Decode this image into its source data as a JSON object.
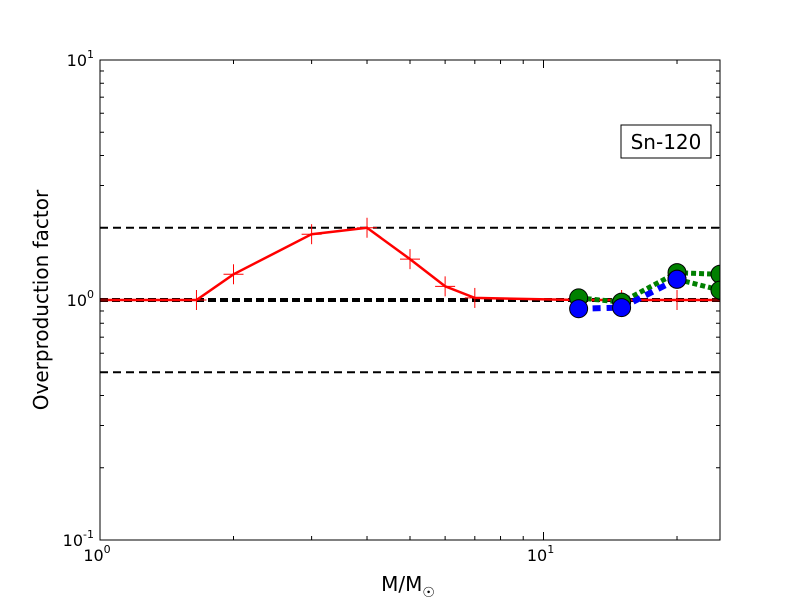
{
  "chart_data": {
    "type": "line",
    "xlabel": "M/M",
    "xlabel_subscript": "☉",
    "ylabel": "Overproduction factor",
    "xscale": "log",
    "yscale": "log",
    "xlim": [
      1,
      25
    ],
    "ylim": [
      0.1,
      10
    ],
    "x_ticks": [
      {
        "value": 1,
        "base": "10",
        "exp": "0"
      },
      {
        "value": 10,
        "base": "10",
        "exp": "1"
      }
    ],
    "y_ticks": [
      {
        "value": 0.1,
        "base": "10",
        "exp": "-1"
      },
      {
        "value": 1,
        "base": "10",
        "exp": "0"
      },
      {
        "value": 10,
        "base": "10",
        "exp": "1"
      }
    ],
    "reference_lines": [
      {
        "y": 2.0,
        "color": "#000000",
        "style": "dashed",
        "weight": "thin"
      },
      {
        "y": 1.0,
        "color": "#000000",
        "style": "dashed",
        "weight": "thick"
      },
      {
        "y": 0.5,
        "color": "#000000",
        "style": "dashed",
        "weight": "thin"
      }
    ],
    "annotation": "Sn-120",
    "legend": "none",
    "grid": false,
    "series": [
      {
        "color": "#ff0000",
        "line_style": "solid",
        "marker": "plus",
        "x": [
          1.0,
          1.65,
          2.0,
          3.0,
          4.0,
          5.0,
          6.0,
          7.0,
          12.0,
          15.0,
          20.0,
          25.0
        ],
        "y": [
          1.0,
          1.0,
          1.28,
          1.88,
          2.0,
          1.48,
          1.14,
          1.02,
          1.0,
          1.0,
          1.0,
          1.0
        ]
      },
      {
        "color": "#008000",
        "line_style": "dotted",
        "marker": "circle",
        "x": [
          12.0,
          15.0,
          20.0,
          25.0
        ],
        "y": [
          1.02,
          0.98,
          1.3,
          1.28
        ]
      },
      {
        "color": "#008000",
        "line_style": "dotted",
        "marker": "circle",
        "x": [
          20.0,
          25.0
        ],
        "y": [
          1.22,
          1.1
        ]
      },
      {
        "color": "#0000ff",
        "line_style": "dashed",
        "marker": "circle",
        "x": [
          12.0,
          15.0,
          20.0
        ],
        "y": [
          0.92,
          0.93,
          1.22
        ]
      }
    ]
  }
}
